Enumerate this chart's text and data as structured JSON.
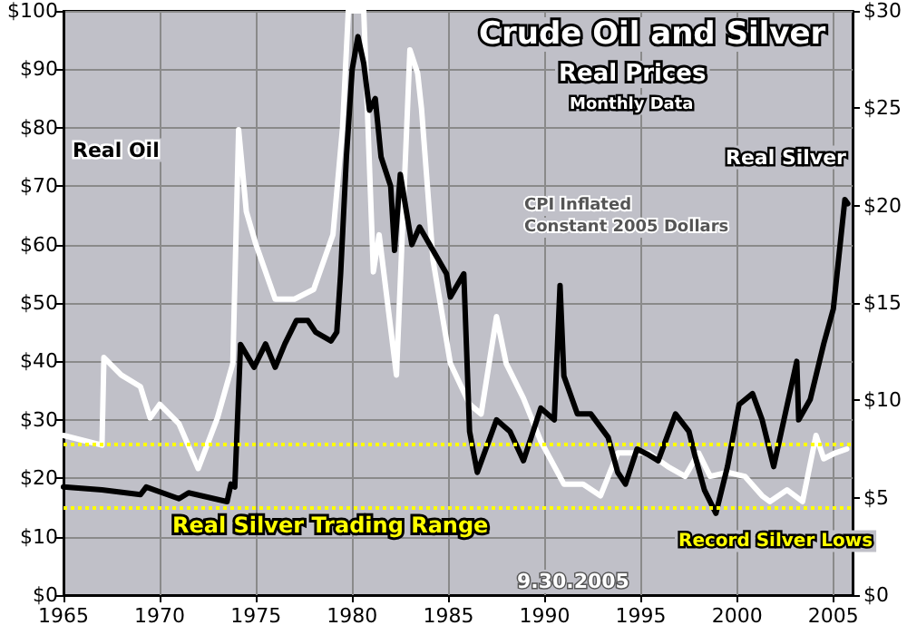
{
  "chart_data": {
    "type": "line",
    "title": "Crude Oil and Silver",
    "subtitle": "Real Prices",
    "annotations": [
      "Monthly Data",
      "CPI Inflated Constant 2005 Dollars",
      "9.30.2005",
      "Record Silver Lows"
    ],
    "xlim": [
      1965,
      2006
    ],
    "xticks": [
      1965,
      1970,
      1975,
      1980,
      1985,
      1990,
      1995,
      2000,
      2005
    ],
    "ylim": [
      0,
      100
    ],
    "yticks": [
      {
        "value": 0,
        "label": "$0"
      },
      {
        "value": 10,
        "label": "$10"
      },
      {
        "value": 20,
        "label": "$20"
      },
      {
        "value": 30,
        "label": "$30"
      },
      {
        "value": 40,
        "label": "$40"
      },
      {
        "value": 50,
        "label": "$50"
      },
      {
        "value": 60,
        "label": "$60"
      },
      {
        "value": 70,
        "label": "$70"
      },
      {
        "value": 80,
        "label": "$80"
      },
      {
        "value": 90,
        "label": "$90"
      },
      {
        "value": 100,
        "label": "$100"
      }
    ],
    "y2lim": [
      0,
      30
    ],
    "y2ticks": [
      {
        "value": 0,
        "label": "$0"
      },
      {
        "value": 5,
        "label": "$5"
      },
      {
        "value": 10,
        "label": "$10"
      },
      {
        "value": 15,
        "label": "$15"
      },
      {
        "value": 20,
        "label": "$20"
      },
      {
        "value": 25,
        "label": "$25"
      },
      {
        "value": 30,
        "label": "$30"
      }
    ],
    "grid": true,
    "legend": false,
    "marker": "none",
    "line_style": "solid",
    "ref_lines": [
      {
        "axis": "y2",
        "value": 7.8,
        "color": "#ffff00",
        "line_style": "dotted"
      },
      {
        "axis": "y2",
        "value": 4.5,
        "label": "Real Silver Trading Range",
        "color": "#ffff00",
        "line_style": "dotted"
      }
    ],
    "series": [
      {
        "name": "Real Silver",
        "color": "#ffffff",
        "axis": "y2",
        "x": [
          1965,
          1967,
          1967.1,
          1968,
          1969,
          1969.5,
          1970,
          1971,
          1972,
          1973,
          1973.8,
          1974.1,
          1974.5,
          1975,
          1976,
          1977,
          1978,
          1979,
          1979.5,
          1979.8,
          1980.0,
          1980.6,
          1981.1,
          1981.4,
          1982.3,
          1983,
          1983.4,
          1983.6,
          1984.2,
          1985.1,
          1986.1,
          1986.7,
          1987.5,
          1988,
          1988.9,
          1989.8,
          1991,
          1992,
          1992.9,
          1993.8,
          1994.5,
          1995.4,
          1996.4,
          1997.3,
          1998,
          1998.6,
          1999.5,
          2000.4,
          2001.3,
          2001.7,
          2002.6,
          2003.4,
          2004.1,
          2004.5,
          2005.1,
          2005.7
        ],
        "values": [
          8.2,
          7.7,
          12.2,
          11.3,
          10.7,
          9.1,
          9.8,
          8.8,
          6.5,
          9.1,
          11.9,
          23.9,
          19.7,
          18,
          15.2,
          15.2,
          15.7,
          18.5,
          24,
          30,
          30,
          30,
          16.6,
          18.5,
          11.3,
          28,
          26.8,
          25,
          17.2,
          11.9,
          9.8,
          9.3,
          14.3,
          11.9,
          10.1,
          7.9,
          5.7,
          5.7,
          5.1,
          7.3,
          7.3,
          7.3,
          6.6,
          6.1,
          7.3,
          6.1,
          6.3,
          6.1,
          5.1,
          4.8,
          5.4,
          4.8,
          8.2,
          7,
          7.3,
          7.5
        ]
      },
      {
        "name": "Real Oil",
        "color": "#000000",
        "x": [
          1965,
          1967,
          1969,
          1969.3,
          1971,
          1971.5,
          1973.5,
          1973.7,
          1973.9,
          1974.2,
          1974.9,
          1975.5,
          1976,
          1976.5,
          1977.1,
          1977.7,
          1978.1,
          1978.9,
          1979.2,
          1979.4,
          1979.7,
          1980,
          1980.3,
          1980.6,
          1980.9,
          1981.2,
          1981.5,
          1982,
          1982.2,
          1982.5,
          1983.1,
          1983.5,
          1984.9,
          1985.1,
          1985.8,
          1986.1,
          1986.5,
          1987.5,
          1988.2,
          1988.9,
          1989.8,
          1990.5,
          1990.8,
          1991,
          1991.7,
          1992.4,
          1993.3,
          1993.8,
          1994.2,
          1994.8,
          1995.4,
          1995.9,
          1996.8,
          1997.5,
          1997.8,
          1998.3,
          1998.9,
          1999.5,
          2000.1,
          2000.8,
          2001.3,
          2001.9,
          2002.3,
          2003.1,
          2003.2,
          2003.8,
          2004.5,
          2005,
          2005.6,
          2005.75
        ],
        "values": [
          18.5,
          18,
          17.2,
          18.5,
          16.5,
          17.5,
          16,
          19,
          18.5,
          42.9,
          39,
          43,
          39,
          43,
          47,
          47,
          45,
          43.5,
          45,
          55,
          75,
          90,
          95.6,
          91,
          83,
          85,
          75,
          70,
          59,
          72,
          60,
          63,
          55,
          51,
          55,
          28,
          21,
          30,
          28,
          23,
          32,
          30,
          53,
          37.5,
          31,
          31,
          27,
          21,
          19,
          25,
          24,
          23,
          31,
          28,
          24,
          18,
          14,
          22,
          32.6,
          34.5,
          30,
          22,
          28,
          40,
          30,
          33.5,
          43,
          49,
          67.7,
          67
        ]
      }
    ]
  }
}
